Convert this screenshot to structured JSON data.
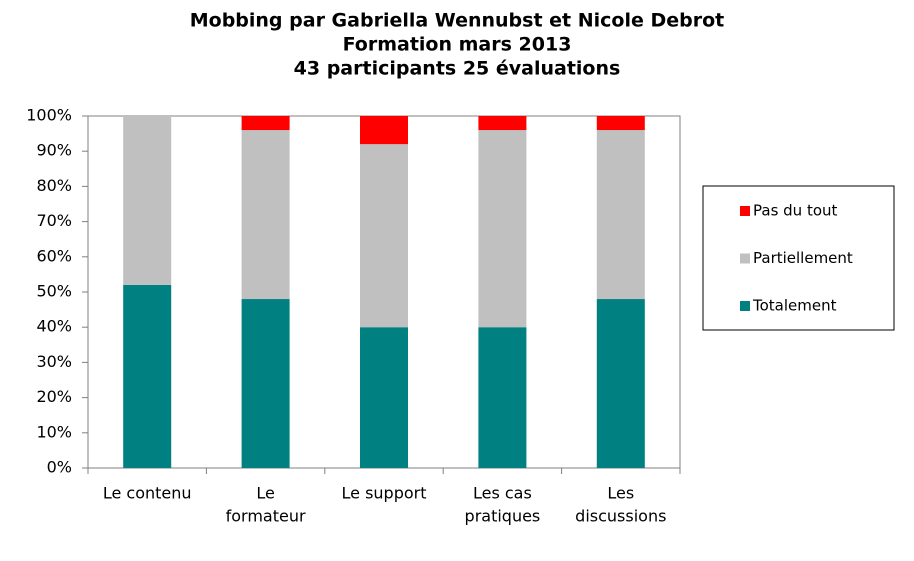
{
  "chart_data": {
    "type": "stacked-bar",
    "title": [
      "Mobbing par Gabriella Wennubst et Nicole Debrot",
      "Formation mars 2013",
      "43 participants 25 évaluations"
    ],
    "categories": [
      [
        "Le contenu"
      ],
      [
        "Le",
        "formateur"
      ],
      [
        "Le support"
      ],
      [
        "Les cas",
        "pratiques"
      ],
      [
        "Les",
        "discussions"
      ]
    ],
    "series": [
      {
        "name": "Totalement",
        "color": "#008080",
        "values": [
          52,
          48,
          40,
          40,
          48
        ]
      },
      {
        "name": "Partiellement",
        "color": "#c0c0c0",
        "values": [
          48,
          48,
          52,
          56,
          48
        ]
      },
      {
        "name": "Pas du tout",
        "color": "#ff0000",
        "values": [
          0,
          4,
          8,
          4,
          4
        ]
      }
    ],
    "ylim": [
      0,
      100
    ],
    "yticks": [
      {
        "value": 0,
        "label": "0%"
      },
      {
        "value": 10,
        "label": "10%"
      },
      {
        "value": 20,
        "label": "20%"
      },
      {
        "value": 30,
        "label": "30%"
      },
      {
        "value": 40,
        "label": "40%"
      },
      {
        "value": 50,
        "label": "50%"
      },
      {
        "value": 60,
        "label": "60%"
      },
      {
        "value": 70,
        "label": "70%"
      },
      {
        "value": 80,
        "label": "80%"
      },
      {
        "value": 90,
        "label": "90%"
      },
      {
        "value": 100,
        "label": "100%"
      }
    ],
    "legend": "right"
  }
}
